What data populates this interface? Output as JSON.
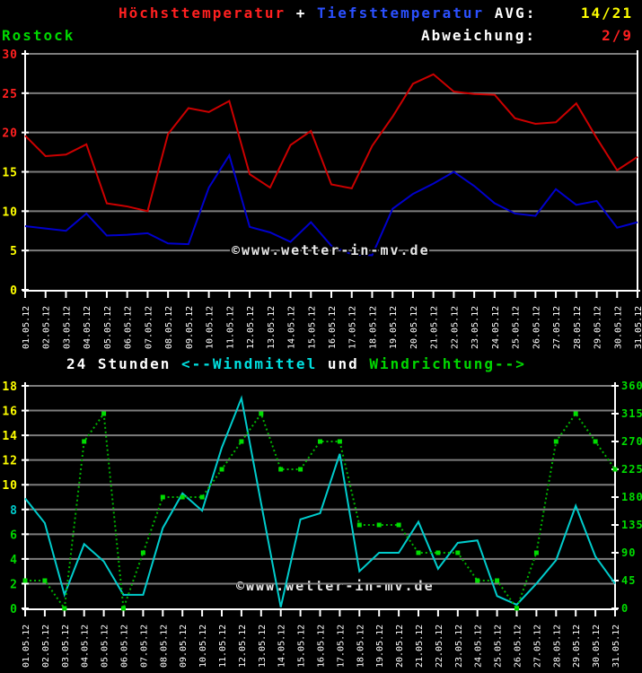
{
  "header": {
    "title_high": "Höchsttemperatur",
    "title_sep": " + ",
    "title_low": "Tiefsttemperatur",
    "avg_label": " AVG:",
    "avg_value": "14/21",
    "station": "Rostock",
    "deviation_label": "Abweichung:",
    "deviation_value": "2/9"
  },
  "watermark": "©www.wetter-in-mv.de",
  "wind_header": {
    "prefix": "24 Stunden ",
    "windmittel": "<--Windmittel",
    "mid": " und ",
    "windrichtung": "Windrichtung-->"
  },
  "colors": {
    "background": "#000000",
    "high_text": "#ff2020",
    "low_text": "#2b50ff",
    "station_green": "#00d800",
    "avg_yellow": "#ffff00",
    "deviation_red": "#ff2020",
    "grid_gray": "#7d7d7d",
    "axis_white": "#ffffff",
    "high_line": "#cc0000",
    "low_line": "#0000cc",
    "wind_speed_line": "#00cccc",
    "wind_dir_line": "#00b400",
    "wind_dir_marker": "#00dd00"
  },
  "chart_data": [
    {
      "type": "line",
      "title": "Höchsttemperatur + Tiefsttemperatur",
      "x_labels": [
        "01.05.12",
        "02.05.12",
        "03.05.12",
        "04.05.12",
        "05.05.12",
        "06.05.12",
        "07.05.12",
        "08.05.12",
        "09.05.12",
        "10.05.12",
        "11.05.12",
        "12.05.12",
        "13.05.12",
        "14.05.12",
        "15.05.12",
        "16.05.12",
        "17.05.12",
        "18.05.12",
        "19.05.12",
        "20.05.12",
        "21.05.12",
        "22.05.12",
        "23.05.12",
        "24.05.12",
        "25.05.12",
        "26.05.12",
        "27.05.12",
        "28.05.12",
        "29.05.12",
        "30.05.12",
        "31.05.12"
      ],
      "y_axis": {
        "min": 0,
        "max": 30,
        "ticks": [
          0,
          5,
          10,
          15,
          20,
          25,
          30
        ],
        "tick_colors": [
          "#ffff00",
          "#ffff00",
          "#ffff00",
          "#ffff00",
          "#ff2020",
          "#ff2020",
          "#ff2020"
        ]
      },
      "grid": true,
      "series": [
        {
          "name": "Höchsttemperatur",
          "color": "#cc0000",
          "style": "solid",
          "values": [
            19.6,
            17.0,
            17.2,
            18.5,
            11.0,
            10.6,
            10.0,
            19.8,
            23.1,
            22.6,
            24.0,
            14.7,
            13.0,
            18.4,
            20.2,
            13.4,
            12.9,
            18.3,
            22.0,
            26.2,
            27.4,
            25.2,
            24.9,
            24.8,
            21.8,
            21.1,
            21.3,
            23.7,
            19.3,
            15.2,
            16.9
          ]
        },
        {
          "name": "Tiefsttemperatur",
          "color": "#0000cc",
          "style": "solid",
          "values": [
            8.1,
            7.8,
            7.5,
            9.7,
            6.9,
            7.0,
            7.2,
            5.9,
            5.8,
            13.0,
            17.1,
            8.0,
            7.3,
            6.1,
            8.6,
            5.6,
            4.5,
            4.4,
            10.3,
            12.2,
            13.5,
            15.0,
            13.2,
            11.0,
            9.7,
            9.4,
            12.8,
            10.8,
            11.3,
            7.9,
            8.6
          ]
        }
      ]
    },
    {
      "type": "line",
      "title": "24 Stunden <--Windmittel und Windrichtung-->",
      "x_labels": [
        "01.05.12",
        "02.05.12",
        "03.05.12",
        "04.05.12",
        "05.05.12",
        "06.05.12",
        "07.05.12",
        "08.05.12",
        "09.05.12",
        "10.05.12",
        "11.05.12",
        "12.05.12",
        "13.05.12",
        "14.05.12",
        "15.05.12",
        "16.05.12",
        "17.05.12",
        "18.05.12",
        "19.05.12",
        "20.05.12",
        "21.05.12",
        "22.05.12",
        "23.05.12",
        "24.05.12",
        "25.05.12",
        "26.05.12",
        "27.05.12",
        "28.05.12",
        "29.05.12",
        "30.05.12",
        "31.05.12"
      ],
      "y_axis": {
        "min": 0,
        "max": 18,
        "ticks": [
          0,
          2,
          4,
          6,
          8,
          10,
          12,
          14,
          16,
          18
        ],
        "tick_colors": [
          "#00d800",
          "#00d800",
          "#00d800",
          "#00d800",
          "#00cccc",
          "#ffff00",
          "#ffff00",
          "#ffff00",
          "#ffff00",
          "#ffff00"
        ]
      },
      "y_axis_right": {
        "min": 0,
        "max": 360,
        "ticks": [
          0,
          45,
          90,
          135,
          180,
          225,
          270,
          315,
          360
        ],
        "color": "#00dd00"
      },
      "grid": true,
      "series": [
        {
          "name": "Windmittel",
          "axis": "left",
          "color": "#00cccc",
          "style": "solid",
          "values": [
            8.9,
            6.9,
            1.1,
            5.2,
            3.8,
            1.1,
            1.1,
            6.5,
            9.3,
            7.9,
            13.0,
            17.0,
            8.5,
            0.1,
            7.2,
            7.7,
            12.5,
            3.0,
            4.5,
            4.5,
            7.0,
            3.2,
            5.3,
            5.5,
            1.0,
            0.3,
            2.0,
            3.9,
            8.3,
            4.2,
            2.0
          ]
        },
        {
          "name": "Windrichtung",
          "axis": "right",
          "color": "#00b400",
          "style": "dotted",
          "marker": true,
          "marker_color": "#00dd00",
          "values": [
            45,
            45,
            0,
            270,
            315,
            0,
            90,
            180,
            180,
            180,
            225,
            270,
            315,
            225,
            225,
            270,
            270,
            135,
            135,
            135,
            90,
            90,
            90,
            45,
            45,
            0,
            90,
            270,
            315,
            270,
            225
          ]
        }
      ]
    }
  ]
}
